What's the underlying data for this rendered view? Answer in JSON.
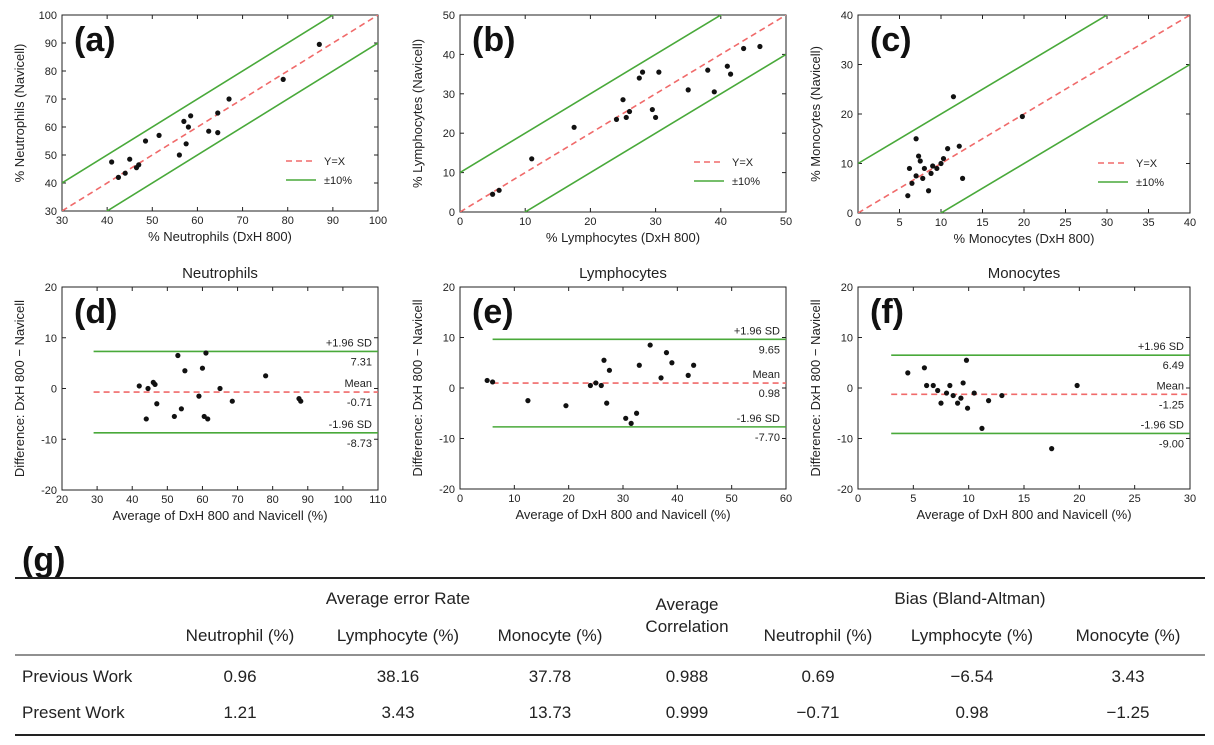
{
  "figure": {
    "table_label": "(g)"
  },
  "chart_data": [
    {
      "id": "a",
      "type": "scatter",
      "panel_label": "(a)",
      "xlabel": "% Neutrophils (DxH 800)",
      "ylabel": "% Neutrophils (Navicell)",
      "xlim": [
        30,
        100
      ],
      "ylim": [
        30,
        100
      ],
      "xticks": [
        30,
        40,
        50,
        60,
        70,
        80,
        90,
        100
      ],
      "yticks": [
        30,
        40,
        50,
        60,
        70,
        80,
        90,
        100
      ],
      "legend": [
        "Y=X",
        "±10%"
      ],
      "band": 10,
      "points": [
        [
          41,
          47.5
        ],
        [
          42.5,
          42
        ],
        [
          44,
          43.5
        ],
        [
          45,
          48.5
        ],
        [
          46.5,
          45.5
        ],
        [
          47,
          46.5
        ],
        [
          48.5,
          55
        ],
        [
          51.5,
          57
        ],
        [
          56,
          50
        ],
        [
          57.5,
          54
        ],
        [
          57,
          62
        ],
        [
          58.5,
          64
        ],
        [
          58,
          60
        ],
        [
          62.5,
          58.5
        ],
        [
          64.5,
          58
        ],
        [
          64.5,
          65
        ],
        [
          67,
          70
        ],
        [
          79,
          77
        ],
        [
          87,
          89.5
        ]
      ]
    },
    {
      "id": "b",
      "type": "scatter",
      "panel_label": "(b)",
      "xlabel": "% Lymphocytes (DxH 800)",
      "ylabel": "% Lymphocytes (Navicell)",
      "xlim": [
        0,
        50
      ],
      "ylim": [
        0,
        50
      ],
      "xticks": [
        0,
        10,
        20,
        30,
        40,
        50
      ],
      "yticks": [
        0,
        10,
        20,
        30,
        40,
        50
      ],
      "legend": [
        "Y=X",
        "±10%"
      ],
      "band": 10,
      "points": [
        [
          5,
          4.5
        ],
        [
          6,
          5.5
        ],
        [
          11,
          13.5
        ],
        [
          17.5,
          21.5
        ],
        [
          24,
          23.5
        ],
        [
          25,
          28.5
        ],
        [
          25.5,
          24
        ],
        [
          26,
          25.5
        ],
        [
          27.5,
          34
        ],
        [
          28,
          35.5
        ],
        [
          29.5,
          26
        ],
        [
          30,
          24
        ],
        [
          30.5,
          35.5
        ],
        [
          35,
          31
        ],
        [
          38,
          36
        ],
        [
          39,
          30.5
        ],
        [
          41,
          37
        ],
        [
          41.5,
          35
        ],
        [
          43.5,
          41.5
        ],
        [
          46,
          42
        ]
      ]
    },
    {
      "id": "c",
      "type": "scatter",
      "panel_label": "(c)",
      "xlabel": "% Monocytes (DxH 800)",
      "ylabel": "% Monocytes (Navicell)",
      "xlim": [
        0,
        40
      ],
      "ylim": [
        0,
        40
      ],
      "xticks": [
        0,
        5,
        10,
        15,
        20,
        25,
        30,
        35,
        40
      ],
      "yticks": [
        0,
        10,
        20,
        30,
        40
      ],
      "legend": [
        "Y=X",
        "±10%"
      ],
      "band": 10,
      "points": [
        [
          6,
          3.5
        ],
        [
          6.2,
          9
        ],
        [
          6.5,
          6
        ],
        [
          7,
          7.5
        ],
        [
          7,
          15
        ],
        [
          7.3,
          11.5
        ],
        [
          7.5,
          10.5
        ],
        [
          7.8,
          7
        ],
        [
          8,
          9
        ],
        [
          8.5,
          4.5
        ],
        [
          8.8,
          8
        ],
        [
          9,
          9.5
        ],
        [
          9.5,
          9
        ],
        [
          10,
          10
        ],
        [
          10.3,
          11
        ],
        [
          10.8,
          13
        ],
        [
          11.5,
          23.5
        ],
        [
          12.2,
          13.5
        ],
        [
          12.6,
          7
        ],
        [
          19.8,
          19.5
        ]
      ]
    },
    {
      "id": "d",
      "type": "scatter",
      "panel_label": "(d)",
      "title": "Neutrophils",
      "xlabel": "Average of DxH 800 and Navicell (%)",
      "ylabel": "Difference: DxH 800 − Navicell",
      "xlim": [
        20,
        110
      ],
      "ylim": [
        -20,
        20
      ],
      "xticks": [
        20,
        30,
        40,
        50,
        60,
        70,
        80,
        90,
        100,
        110
      ],
      "yticks": [
        -20,
        -10,
        0,
        10,
        20
      ],
      "upper_label": "+1.96 SD",
      "upper_value": "7.31",
      "upper": 7.31,
      "mean_label": "Mean",
      "mean_value": "-0.71",
      "mean": -0.71,
      "lower_label": "-1.96 SD",
      "lower_value": "-8.73",
      "lower": -8.73,
      "points": [
        [
          42,
          0.5
        ],
        [
          44,
          -6
        ],
        [
          44.5,
          0
        ],
        [
          46,
          1.2
        ],
        [
          46.5,
          0.8
        ],
        [
          47,
          -3
        ],
        [
          52,
          -5.5
        ],
        [
          53,
          6.5
        ],
        [
          54,
          -4
        ],
        [
          55,
          3.5
        ],
        [
          59,
          -1.5
        ],
        [
          60,
          4
        ],
        [
          60.5,
          -5.5
        ],
        [
          61,
          7
        ],
        [
          61.5,
          -6
        ],
        [
          65,
          0
        ],
        [
          68.5,
          -2.5
        ],
        [
          78,
          2.5
        ],
        [
          87.5,
          -2
        ],
        [
          88,
          -2.5
        ]
      ]
    },
    {
      "id": "e",
      "type": "scatter",
      "panel_label": "(e)",
      "title": "Lymphocytes",
      "xlabel": "Average of DxH 800 and Navicell (%)",
      "ylabel": "Difference: DxH 800 − Navicell",
      "xlim": [
        0,
        60
      ],
      "ylim": [
        -20,
        20
      ],
      "xticks": [
        0,
        10,
        20,
        30,
        40,
        50,
        60
      ],
      "yticks": [
        -20,
        -10,
        0,
        10,
        20
      ],
      "upper_label": "+1.96 SD",
      "upper_value": "9.65",
      "upper": 9.65,
      "mean_label": "Mean",
      "mean_value": "0.98",
      "mean": 0.98,
      "lower_label": "-1.96 SD",
      "lower_value": "-7.70",
      "lower": -7.7,
      "points": [
        [
          5,
          1.5
        ],
        [
          6,
          1.2
        ],
        [
          12.5,
          -2.5
        ],
        [
          19.5,
          -3.5
        ],
        [
          24,
          0.5
        ],
        [
          25,
          1
        ],
        [
          26,
          0.5
        ],
        [
          26.5,
          5.5
        ],
        [
          27,
          -3
        ],
        [
          27.5,
          3.5
        ],
        [
          30.5,
          -6
        ],
        [
          31.5,
          -7
        ],
        [
          32.5,
          -5
        ],
        [
          33,
          4.5
        ],
        [
          35,
          8.5
        ],
        [
          37,
          2
        ],
        [
          38,
          7
        ],
        [
          39,
          5
        ],
        [
          42,
          2.5
        ],
        [
          43,
          4.5
        ]
      ]
    },
    {
      "id": "f",
      "type": "scatter",
      "panel_label": "(f)",
      "title": "Monocytes",
      "xlabel": "Average of DxH 800 and Navicell (%)",
      "ylabel": "Difference: DxH 800 − Navicell",
      "xlim": [
        0,
        30
      ],
      "ylim": [
        -20,
        20
      ],
      "xticks": [
        0,
        5,
        10,
        15,
        20,
        25,
        30
      ],
      "yticks": [
        -20,
        -10,
        0,
        10,
        20
      ],
      "upper_label": "+1.96 SD",
      "upper_value": "6.49",
      "upper": 6.49,
      "mean_label": "Mean",
      "mean_value": "-1.25",
      "mean": -1.25,
      "lower_label": "-1.96 SD",
      "lower_value": "-9.00",
      "lower": -9.0,
      "points": [
        [
          4.5,
          3
        ],
        [
          6,
          4
        ],
        [
          6.2,
          0.5
        ],
        [
          6.8,
          0.5
        ],
        [
          7.2,
          -0.5
        ],
        [
          7.5,
          -3
        ],
        [
          8,
          -1
        ],
        [
          8.3,
          0.5
        ],
        [
          8.6,
          -1.5
        ],
        [
          9,
          -3
        ],
        [
          9.3,
          -2
        ],
        [
          9.5,
          1
        ],
        [
          9.8,
          5.5
        ],
        [
          9.9,
          -4
        ],
        [
          10.5,
          -1
        ],
        [
          11.2,
          -8
        ],
        [
          11.8,
          -2.5
        ],
        [
          13,
          -1.5
        ],
        [
          17.5,
          -12
        ],
        [
          19.8,
          0.5
        ]
      ]
    }
  ],
  "table": {
    "group_error": "Average error Rate",
    "avg_corr_line1": "Average",
    "avg_corr_line2": "Correlation",
    "group_bias": "Bias (Bland-Altman)",
    "subheaders": [
      "Neutrophil  (%)",
      "Lymphocyte  (%)",
      "Monocyte  (%)",
      "Neutrophil  (%)",
      "Lymphocyte  (%)",
      "Monocyte  (%)"
    ],
    "rows": [
      {
        "label": "Previous Work",
        "values": [
          "0.96",
          "38.16",
          "37.78",
          "0.988",
          "0.69",
          "−6.54",
          "3.43"
        ]
      },
      {
        "label": "Present Work",
        "values": [
          "1.21",
          "3.43",
          "13.73",
          "0.999",
          "−0.71",
          "0.98",
          "−1.25"
        ]
      }
    ]
  }
}
